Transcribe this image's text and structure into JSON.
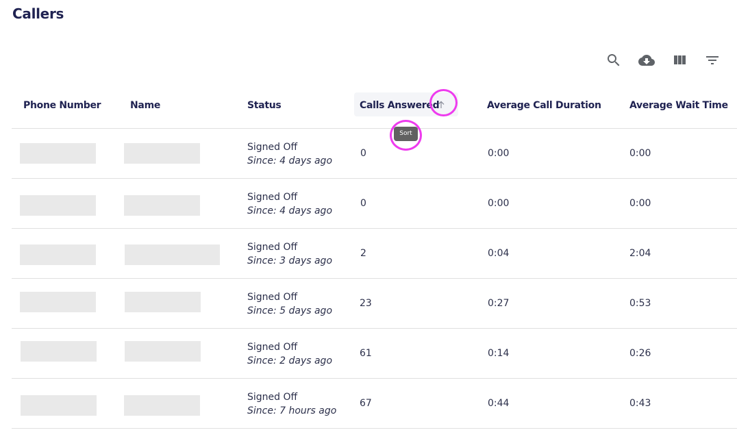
{
  "page": {
    "title": "Callers"
  },
  "toolbar": {
    "icons": [
      "search-icon",
      "cloud-download-icon",
      "view-column-icon",
      "filter-list-icon"
    ]
  },
  "table": {
    "headers": {
      "phone": "Phone Number",
      "name": "Name",
      "status": "Status",
      "calls_answered": "Calls Answered",
      "avg_call_duration": "Average Call Duration",
      "avg_wait_time": "Average Wait Time"
    },
    "sort_tooltip": "Sort",
    "rows": [
      {
        "status": "Signed Off",
        "since": "Since: 4 days ago",
        "calls": "0",
        "duration": "0:00",
        "wait": "0:00"
      },
      {
        "status": "Signed Off",
        "since": "Since: 4 days ago",
        "calls": "0",
        "duration": "0:00",
        "wait": "0:00"
      },
      {
        "status": "Signed Off",
        "since": "Since: 3 days ago",
        "calls": "2",
        "duration": "0:04",
        "wait": "2:04"
      },
      {
        "status": "Signed Off",
        "since": "Since: 5 days ago",
        "calls": "23",
        "duration": "0:27",
        "wait": "0:53"
      },
      {
        "status": "Signed Off",
        "since": "Since: 2 days ago",
        "calls": "61",
        "duration": "0:14",
        "wait": "0:26"
      },
      {
        "status": "Signed Off",
        "since": "Since: 7 hours ago",
        "calls": "67",
        "duration": "0:44",
        "wait": "0:43"
      }
    ]
  },
  "colors": {
    "heading": "#1f2251",
    "icon": "#5f6368",
    "highlight": "#ee3bee",
    "placeholder": "#e9e9e9"
  }
}
